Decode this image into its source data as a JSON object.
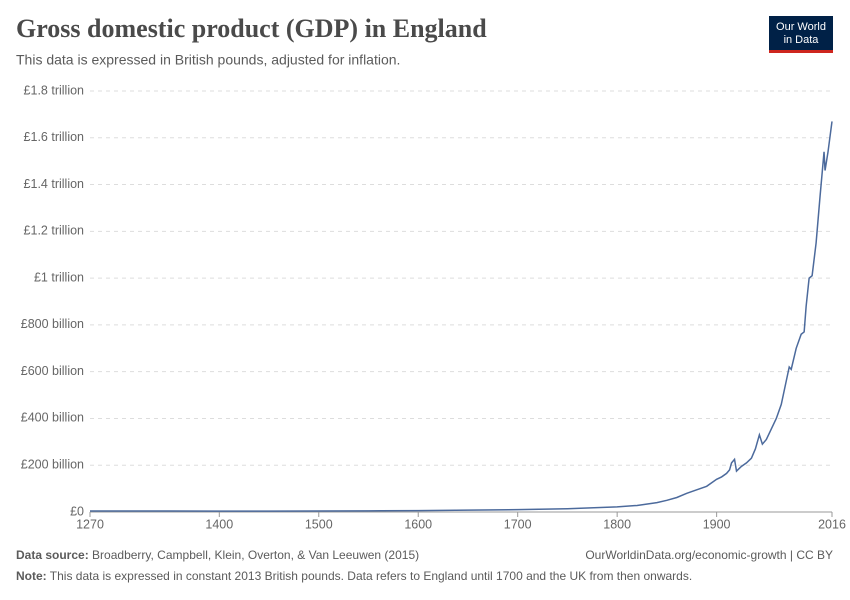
{
  "chart_data": {
    "type": "line",
    "title": "Gross domestic product (GDP) in England",
    "subtitle": "This data is expressed in British pounds, adjusted for inflation.",
    "logo": [
      "Our World",
      "in Data"
    ],
    "source_label": "Data source:",
    "source": "Broadberry, Campbell, Klein, Overton, & Van Leeuwen (2015)",
    "url": "OurWorldinData.org/economic-growth | CC BY",
    "note_label": "Note:",
    "note": "This data is expressed in constant 2013 British pounds. Data refers to England until 1700 and the UK from then onwards.",
    "color": "#4c6a9c",
    "grid": true,
    "xlim": [
      1270,
      2016
    ],
    "xticks": [
      1270,
      1400,
      1500,
      1600,
      1700,
      1800,
      1900,
      2016
    ],
    "ylim": [
      0,
      1800000000000
    ],
    "yticks": [
      {
        "value": 0,
        "label": "£0"
      },
      {
        "value": 200000000000,
        "label": "£200 billion"
      },
      {
        "value": 400000000000,
        "label": "£400 billion"
      },
      {
        "value": 600000000000,
        "label": "£600 billion"
      },
      {
        "value": 800000000000,
        "label": "£800 billion"
      },
      {
        "value": 1000000000000,
        "label": "£1 trillion"
      },
      {
        "value": 1200000000000,
        "label": "£1.2 trillion"
      },
      {
        "value": 1400000000000,
        "label": "£1.4 trillion"
      },
      {
        "value": 1600000000000,
        "label": "£1.6 trillion"
      },
      {
        "value": 1800000000000,
        "label": "£1.8 trillion"
      }
    ],
    "x": [
      1270,
      1300,
      1350,
      1400,
      1450,
      1500,
      1550,
      1600,
      1650,
      1700,
      1750,
      1800,
      1820,
      1840,
      1850,
      1860,
      1870,
      1880,
      1890,
      1900,
      1905,
      1910,
      1913,
      1915,
      1918,
      1920,
      1925,
      1930,
      1935,
      1939,
      1943,
      1946,
      1950,
      1955,
      1960,
      1965,
      1970,
      1973,
      1975,
      1980,
      1985,
      1988,
      1990,
      1993,
      1996,
      2000,
      2004,
      2008,
      2009,
      2012,
      2016
    ],
    "values": [
      4000000000,
      4500000000,
      4000000000,
      3500000000,
      3500000000,
      4000000000,
      5000000000,
      6000000000,
      8000000000,
      10000000000,
      14000000000,
      22000000000,
      28000000000,
      40000000000,
      50000000000,
      62000000000,
      80000000000,
      95000000000,
      110000000000,
      140000000000,
      150000000000,
      165000000000,
      180000000000,
      210000000000,
      225000000000,
      175000000000,
      195000000000,
      210000000000,
      230000000000,
      270000000000,
      330000000000,
      290000000000,
      310000000000,
      355000000000,
      400000000000,
      460000000000,
      560000000000,
      620000000000,
      610000000000,
      700000000000,
      760000000000,
      770000000000,
      880000000000,
      1000000000000,
      1010000000000,
      1150000000000,
      1350000000000,
      1540000000000,
      1460000000000,
      1540000000000,
      1670000000000
    ]
  }
}
